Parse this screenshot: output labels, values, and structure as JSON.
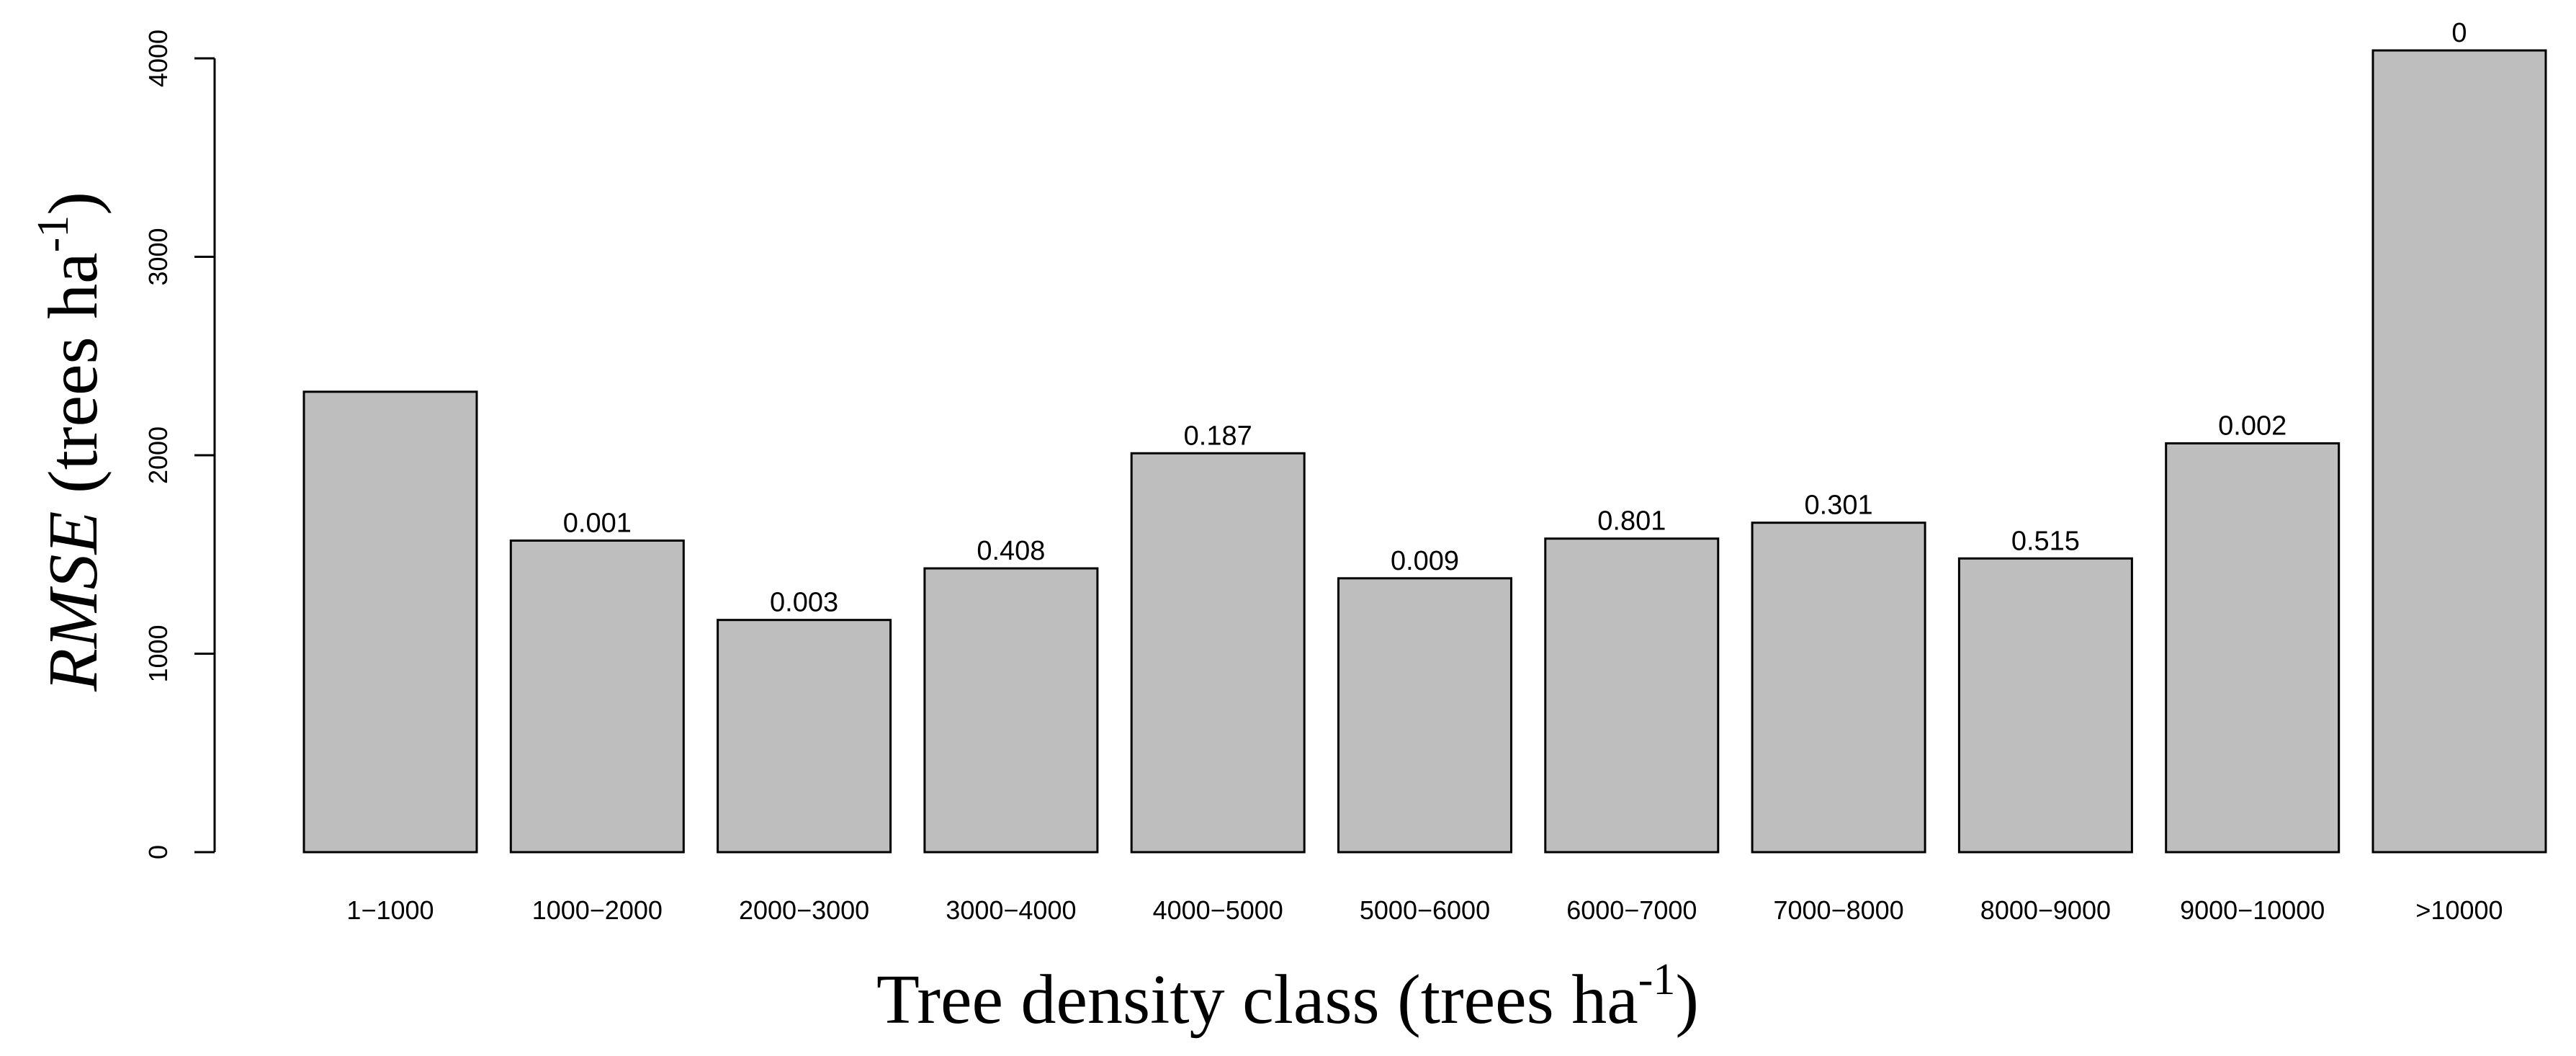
{
  "chart_data": {
    "type": "bar",
    "title": "",
    "categories": [
      "1−1000",
      "1000−2000",
      "2000−3000",
      "3000−4000",
      "4000−5000",
      "5000−6000",
      "6000−7000",
      "7000−8000",
      "8000−9000",
      "9000−10000",
      ">10000"
    ],
    "values": [
      2320,
      1570,
      1170,
      1430,
      2010,
      1380,
      1580,
      1660,
      1480,
      2060,
      4040
    ],
    "data_labels": [
      "",
      "0.001",
      "0.003",
      "0.408",
      "0.187",
      "0.009",
      "0.801",
      "0.301",
      "0.515",
      "0.002",
      "0"
    ],
    "xlabel": {
      "main": "Tree density class (trees ha",
      "superscript": "-1",
      "close": ")"
    },
    "ylabel": {
      "italic": "RMSE",
      "main": " (trees ha",
      "superscript": "-1",
      "close": ")"
    },
    "yticks": [
      0,
      1000,
      2000,
      3000,
      4000
    ],
    "ylim": [
      0,
      4040
    ],
    "bar_color": "#bebebe",
    "edge_color": "#000000",
    "grid": false
  }
}
